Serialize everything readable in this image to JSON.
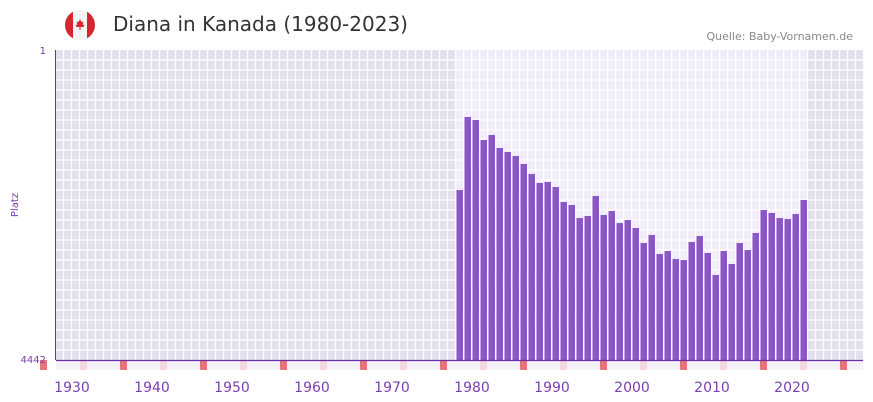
{
  "header": {
    "title": "Diana in Kanada (1980-2023)",
    "source": "Quelle: Baby-Vornamen.de",
    "flag_icon": "canada-flag-icon"
  },
  "chart_data": {
    "type": "bar",
    "title": "Diana in Kanada (1980-2023)",
    "xlabel": "",
    "ylabel": "Platz",
    "y_axis_inverted": true,
    "ylim": [
      1,
      4442
    ],
    "ytick_labels": [
      "1",
      "4442"
    ],
    "xlim": [
      1930,
      2030
    ],
    "xtick_labels": [
      "1930",
      "1940",
      "1950",
      "1960",
      "1970",
      "1980",
      "1990",
      "2000",
      "2010",
      "2020"
    ],
    "x": [
      1980,
      1981,
      1982,
      1983,
      1984,
      1985,
      1986,
      1987,
      1988,
      1989,
      1990,
      1991,
      1992,
      1993,
      1994,
      1995,
      1996,
      1997,
      1998,
      1999,
      2000,
      2001,
      2002,
      2003,
      2004,
      2005,
      2006,
      2007,
      2008,
      2009,
      2010,
      2011,
      2012,
      2013,
      2014,
      2015,
      2016,
      2017,
      2018,
      2019,
      2020,
      2021,
      2022,
      2023
    ],
    "values": [
      2007,
      961,
      1004,
      1290,
      1219,
      1405,
      1462,
      1520,
      1634,
      1777,
      1906,
      1892,
      1964,
      2179,
      2222,
      2408,
      2379,
      2093,
      2365,
      2308,
      2480,
      2437,
      2551,
      2766,
      2651,
      2924,
      2881,
      2995,
      3010,
      2752,
      2666,
      2909,
      3224,
      2881,
      3067,
      2766,
      2866,
      2623,
      2293,
      2336,
      2408,
      2422,
      2351,
      2150
    ],
    "colors": {
      "bar": "#8c55c8",
      "axis": "#6a2fa8",
      "bg_out": "#e4e0ee",
      "bg_in": "#f0ecfa",
      "tick_strong": "#e8737a",
      "tick_light": "#f4d8e0"
    }
  }
}
